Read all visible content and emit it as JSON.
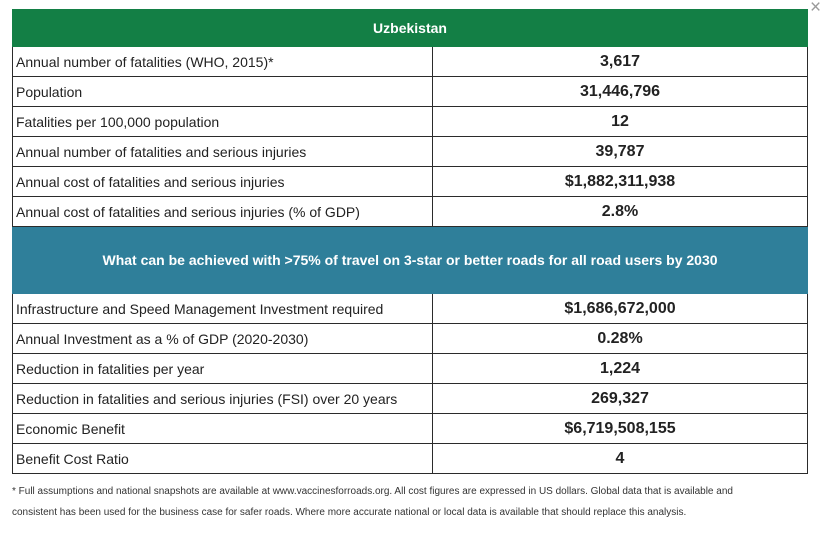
{
  "close_icon": "×",
  "country_header": "Uzbekistan",
  "baseline_rows": [
    {
      "label": "Annual number of fatalities (WHO, 2015)*",
      "value": "3,617"
    },
    {
      "label": "Population",
      "value": "31,446,796"
    },
    {
      "label": "Fatalities per 100,000 population",
      "value": "12"
    },
    {
      "label": "Annual number of fatalities and serious injuries",
      "value": "39,787"
    },
    {
      "label": "Annual cost of fatalities and serious injuries",
      "value": "$1,882,311,938"
    },
    {
      "label": "Annual cost of fatalities and serious injuries (% of GDP)",
      "value": "2.8%"
    }
  ],
  "achieve_header": "What can be achieved with >75% of travel on 3-star or better roads for all road users by 2030",
  "achieve_rows": [
    {
      "label": "Infrastructure and Speed Management Investment required",
      "value": "$1,686,672,000"
    },
    {
      "label": "Annual Investment as a % of GDP (2020-2030)",
      "value": "0.28%"
    },
    {
      "label": "Reduction in fatalities per year",
      "value": "1,224"
    },
    {
      "label": "Reduction in fatalities and serious injuries (FSI) over 20 years",
      "value": "269,327"
    },
    {
      "label": "Economic Benefit",
      "value": "$6,719,508,155"
    },
    {
      "label": "Benefit Cost Ratio",
      "value": "4"
    }
  ],
  "footnote": "* Full assumptions and national snapshots are available at www.vaccinesforroads.org. All cost figures are expressed in US dollars. Global data that is available and consistent has been used for the business case for safer roads. Where more accurate national or local data is available that should replace this analysis.",
  "colors": {
    "country_header_bg": "#137f45",
    "achieve_header_bg": "#2f7f9a"
  }
}
